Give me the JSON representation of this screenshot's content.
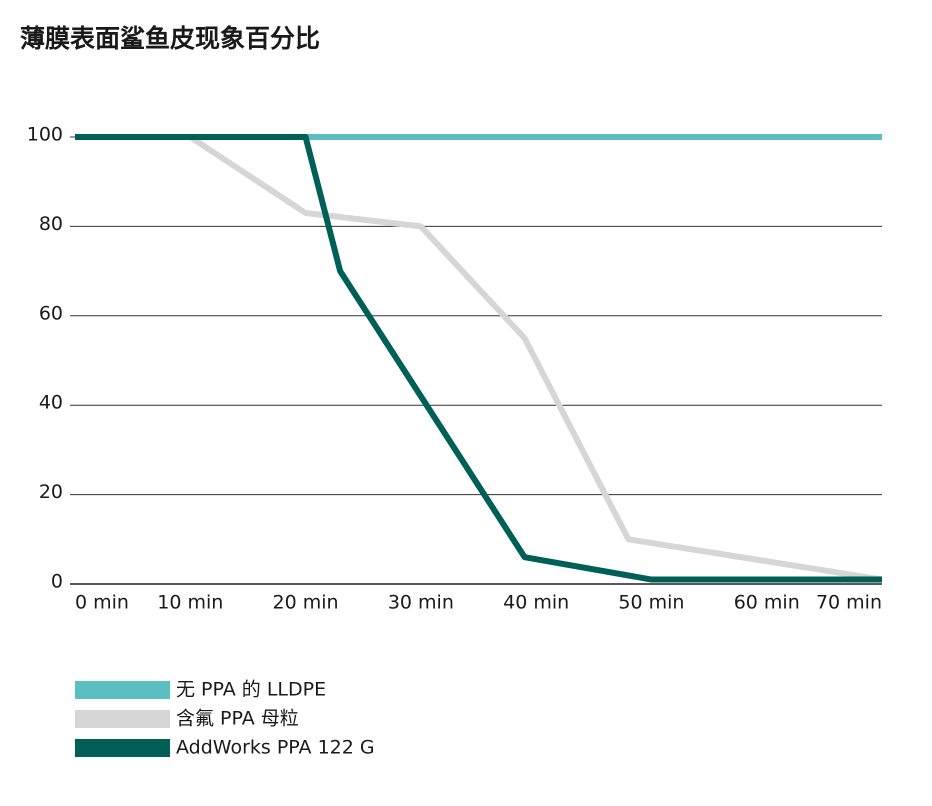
{
  "chart_data": {
    "type": "line",
    "title": "薄膜表面鲨鱼皮现象百分比",
    "xlim": [
      0,
      70
    ],
    "xticks": [
      {
        "value": 0,
        "label": "0 min"
      },
      {
        "value": 10,
        "label": "10 min"
      },
      {
        "value": 20,
        "label": "20 min"
      },
      {
        "value": 30,
        "label": "30 min"
      },
      {
        "value": 40,
        "label": "40 min"
      },
      {
        "value": 50,
        "label": "50 min"
      },
      {
        "value": 60,
        "label": "60 min"
      },
      {
        "value": 70,
        "label": "70 min"
      }
    ],
    "ylim": [
      0,
      100
    ],
    "yticks": [
      0,
      20,
      40,
      60,
      80,
      100
    ],
    "grid": true,
    "legend": "bottom-left",
    "series": [
      {
        "name": "无 PPA 的 LLDPE",
        "color": "#5bbfc2",
        "x": [
          0,
          70
        ],
        "values": [
          100,
          100
        ]
      },
      {
        "name": "含氟 PPA 母粒",
        "color": "#d6d6d6",
        "x": [
          0,
          10,
          20,
          30,
          39,
          48,
          70
        ],
        "values": [
          100,
          100,
          83,
          80,
          55,
          10,
          1
        ]
      },
      {
        "name": "AddWorks PPA 122 G",
        "color": "#005f56",
        "x": [
          0,
          20,
          23,
          39,
          50,
          70
        ],
        "values": [
          100,
          100,
          70,
          6,
          1,
          1
        ]
      }
    ]
  }
}
